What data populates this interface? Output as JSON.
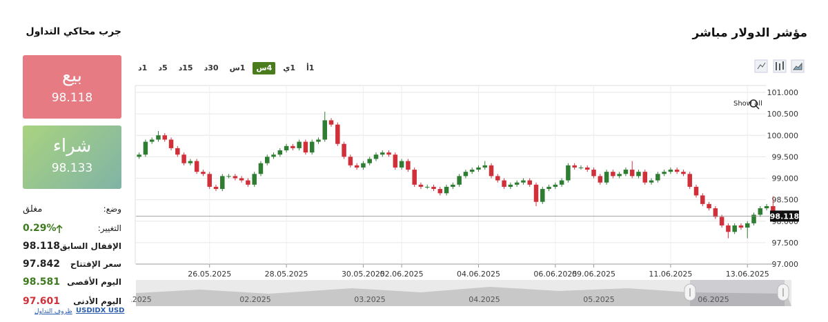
{
  "header": {
    "title": "مؤشر الدولار مباشر",
    "simulator_title": "جرب محاكي التداول"
  },
  "sell": {
    "label": "بيع",
    "price": "98.118"
  },
  "buy": {
    "label": "شراء",
    "price": "98.133"
  },
  "stats": {
    "status_label": "وضع:",
    "status_value": "مغلق",
    "change_label": "التغيير:",
    "change_value": "0.29%",
    "prev_close_label": "الإقفال السابق",
    "prev_close_value": "98.118",
    "open_label": "سعر الإفتتاح",
    "open_value": "97.842",
    "high_label": "اليوم الأقصى",
    "high_value": "98.581",
    "low_label": "اليوم الأدنى",
    "low_value": "97.601"
  },
  "footer": {
    "symbol": "USDIDX USD",
    "conditions": "ظروف التداول"
  },
  "timeframes": {
    "items": [
      "1د",
      "5د",
      "15د",
      "30د",
      "1س",
      "4س",
      "1ي",
      "1أ"
    ],
    "active": "4س"
  },
  "chart_data": {
    "type": "candlestick",
    "up_color": "#2e7d32",
    "down_color": "#d0303a",
    "grid": true,
    "ylim": [
      97,
      101
    ],
    "yticks": [
      {
        "value": 97,
        "label": "97.000"
      },
      {
        "value": 97.5,
        "label": "97.500"
      },
      {
        "value": 98,
        "label": "98.000"
      },
      {
        "value": 98.5,
        "label": "98.500"
      },
      {
        "value": 99,
        "label": "99.000"
      },
      {
        "value": 99.5,
        "label": "99.500"
      },
      {
        "value": 100,
        "label": "100.000"
      },
      {
        "value": 100.5,
        "label": "100.500"
      },
      {
        "value": 101,
        "label": "101.000"
      }
    ],
    "last_price": {
      "value": 98.118,
      "label": "98.118"
    },
    "annotation": "Show all",
    "navigator_labels": [
      ".2025",
      "02.2025",
      "03.2025",
      "04.2025",
      "05.2025",
      "06.2025"
    ],
    "categories": [
      null,
      null,
      null,
      null,
      null,
      null,
      null,
      null,
      null,
      null,
      null,
      "26.05.2025",
      null,
      null,
      null,
      null,
      null,
      null,
      null,
      null,
      null,
      null,
      null,
      "28.05.2025",
      null,
      null,
      null,
      null,
      null,
      null,
      null,
      null,
      null,
      null,
      null,
      "30.05.2025",
      null,
      null,
      null,
      null,
      null,
      "02.06.2025",
      null,
      null,
      null,
      null,
      null,
      null,
      null,
      null,
      null,
      null,
      null,
      "04.06.2025",
      null,
      null,
      null,
      null,
      null,
      null,
      null,
      null,
      null,
      null,
      null,
      "06.06.2025",
      null,
      null,
      null,
      null,
      null,
      "09.06.2025",
      null,
      null,
      null,
      null,
      null,
      null,
      null,
      null,
      null,
      null,
      null,
      "11.06.2025",
      null,
      null,
      null,
      null,
      null,
      null,
      null,
      null,
      null,
      null,
      null,
      "13.06.2025",
      null,
      null,
      null,
      null
    ],
    "open": [
      99.5,
      99.55,
      99.85,
      99.9,
      100.0,
      99.9,
      99.7,
      99.55,
      99.35,
      99.4,
      99.15,
      99.1,
      98.8,
      98.75,
      99.05,
      99.05,
      99.0,
      98.95,
      98.85,
      99.1,
      99.35,
      99.5,
      99.55,
      99.65,
      99.75,
      99.7,
      99.85,
      99.6,
      99.85,
      99.9,
      100.35,
      100.25,
      99.8,
      99.5,
      99.3,
      99.25,
      99.35,
      99.45,
      99.55,
      99.6,
      99.55,
      99.25,
      99.4,
      99.2,
      98.85,
      98.8,
      98.8,
      98.75,
      98.65,
      98.8,
      98.85,
      99.05,
      99.15,
      99.2,
      99.25,
      99.3,
      99.05,
      98.95,
      98.8,
      98.85,
      98.9,
      98.95,
      98.85,
      98.45,
      98.75,
      98.8,
      98.85,
      98.95,
      99.3,
      99.25,
      99.25,
      99.2,
      99.05,
      98.9,
      99.15,
      99.05,
      99.1,
      99.2,
      99.05,
      99.15,
      98.9,
      98.95,
      99.1,
      99.15,
      99.2,
      99.15,
      99.1,
      98.8,
      98.6,
      98.4,
      98.3,
      98.1,
      97.9,
      97.75,
      97.9,
      97.85,
      97.95,
      98.15,
      98.3,
      98.35
    ],
    "close": [
      99.55,
      99.85,
      99.9,
      100.0,
      99.9,
      99.7,
      99.55,
      99.35,
      99.4,
      99.15,
      99.1,
      98.8,
      98.75,
      99.05,
      99.05,
      99.0,
      98.95,
      98.85,
      99.1,
      99.35,
      99.5,
      99.55,
      99.65,
      99.75,
      99.7,
      99.85,
      99.6,
      99.85,
      99.9,
      100.35,
      100.25,
      99.8,
      99.5,
      99.3,
      99.25,
      99.35,
      99.45,
      99.55,
      99.6,
      99.55,
      99.25,
      99.4,
      99.2,
      98.85,
      98.8,
      98.8,
      98.75,
      98.65,
      98.8,
      98.85,
      99.05,
      99.15,
      99.2,
      99.25,
      99.3,
      99.05,
      98.95,
      98.8,
      98.85,
      98.9,
      98.95,
      98.85,
      98.45,
      98.75,
      98.8,
      98.85,
      98.95,
      99.3,
      99.25,
      99.25,
      99.2,
      99.05,
      98.9,
      99.15,
      99.05,
      99.1,
      99.2,
      99.05,
      99.15,
      98.9,
      98.95,
      99.1,
      99.15,
      99.2,
      99.15,
      99.1,
      98.8,
      98.6,
      98.4,
      98.3,
      98.1,
      97.9,
      97.75,
      97.9,
      97.85,
      97.95,
      98.15,
      98.3,
      98.35,
      98.118
    ],
    "high": [
      99.6,
      99.9,
      99.95,
      100.1,
      100.05,
      99.95,
      99.75,
      99.6,
      99.45,
      99.45,
      99.2,
      99.15,
      98.85,
      99.1,
      99.1,
      99.1,
      99.05,
      99.0,
      99.15,
      99.4,
      99.55,
      99.6,
      99.7,
      99.8,
      99.8,
      99.9,
      99.9,
      99.9,
      99.95,
      100.55,
      100.4,
      100.3,
      99.85,
      99.55,
      99.35,
      99.4,
      99.5,
      99.6,
      99.65,
      99.65,
      99.6,
      99.45,
      99.45,
      99.25,
      98.9,
      98.85,
      98.85,
      98.8,
      98.85,
      98.9,
      99.1,
      99.2,
      99.25,
      99.3,
      99.4,
      99.35,
      99.1,
      99.0,
      98.9,
      98.95,
      99.0,
      99.0,
      98.9,
      98.8,
      98.85,
      98.9,
      99.0,
      99.35,
      99.35,
      99.3,
      99.3,
      99.25,
      99.1,
      99.2,
      99.2,
      99.15,
      99.25,
      99.4,
      99.2,
      99.2,
      99.0,
      99.15,
      99.2,
      99.25,
      99.25,
      99.2,
      99.15,
      98.85,
      98.65,
      98.45,
      98.35,
      98.15,
      97.95,
      97.95,
      97.95,
      98.0,
      98.2,
      98.35,
      98.4,
      98.58
    ],
    "low": [
      99.45,
      99.5,
      99.8,
      99.85,
      99.85,
      99.65,
      99.5,
      99.3,
      99.3,
      99.1,
      99.05,
      98.75,
      98.7,
      98.7,
      99.0,
      98.95,
      98.9,
      98.8,
      98.8,
      99.05,
      99.3,
      99.45,
      99.5,
      99.6,
      99.65,
      99.65,
      99.55,
      99.55,
      99.8,
      99.85,
      100.2,
      99.75,
      99.45,
      99.25,
      99.2,
      99.2,
      99.3,
      99.4,
      99.5,
      99.5,
      99.2,
      99.2,
      99.15,
      98.8,
      98.75,
      98.75,
      98.7,
      98.6,
      98.6,
      98.75,
      98.8,
      99.0,
      99.1,
      99.15,
      99.2,
      99.0,
      98.9,
      98.75,
      98.75,
      98.8,
      98.85,
      98.8,
      98.35,
      98.4,
      98.7,
      98.75,
      98.8,
      98.9,
      99.2,
      99.2,
      99.15,
      99.0,
      98.85,
      98.85,
      99.0,
      99.0,
      99.05,
      99.0,
      99.0,
      98.85,
      98.85,
      98.9,
      99.05,
      99.1,
      99.1,
      99.05,
      98.75,
      98.55,
      98.35,
      98.25,
      98.05,
      97.85,
      97.6,
      97.7,
      97.8,
      97.6,
      97.9,
      98.1,
      98.25,
      98.05
    ]
  }
}
